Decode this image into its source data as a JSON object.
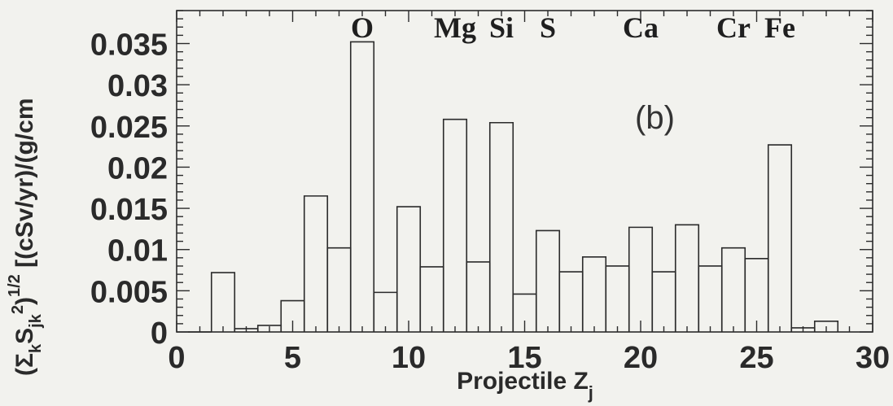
{
  "chart_data": {
    "type": "bar",
    "style": "step-histogram",
    "bin_width": 1,
    "x": [
      1,
      2,
      3,
      4,
      5,
      6,
      7,
      8,
      9,
      10,
      11,
      12,
      13,
      14,
      15,
      16,
      17,
      18,
      19,
      20,
      21,
      22,
      23,
      24,
      25,
      26,
      27,
      28
    ],
    "values": [
      0,
      0.0072,
      0.0004,
      0.0008,
      0.0038,
      0.0165,
      0.0102,
      0.0352,
      0.0048,
      0.0152,
      0.0079,
      0.0258,
      0.0085,
      0.0254,
      0.0046,
      0.0123,
      0.0073,
      0.0091,
      0.008,
      0.0127,
      0.0073,
      0.013,
      0.008,
      0.0102,
      0.0089,
      0.0227,
      0.0005,
      0.0013
    ],
    "xlim": [
      0,
      30
    ],
    "ylim": [
      0,
      0.039
    ],
    "xticks": [
      0,
      5,
      10,
      15,
      20,
      25,
      30
    ],
    "xtick_labels": [
      "0",
      "5",
      "10",
      "15",
      "20",
      "25",
      "30"
    ],
    "yticks": [
      0,
      0.005,
      0.01,
      0.015,
      0.02,
      0.025,
      0.03,
      0.035
    ],
    "ytick_labels": [
      "0",
      "0.005",
      "0.01",
      "0.015",
      "0.02",
      "0.025",
      "0.03",
      "0.035"
    ],
    "xlabel_main": "Projectile Z",
    "xlabel_sub": "j",
    "ylabel_parts": {
      "open": "(",
      "sigma": "Σ",
      "sigma_sub": "k",
      "s": "S",
      "s_sub": "jk",
      "sq": "2",
      "close": ")",
      "power": "1/2",
      "units": "[(cSv/yr)/(g/cm"
    },
    "element_labels": [
      {
        "text": "O",
        "z": 8
      },
      {
        "text": "Mg",
        "z": 12
      },
      {
        "text": "Si",
        "z": 14
      },
      {
        "text": "S",
        "z": 16
      },
      {
        "text": "Ca",
        "z": 20
      },
      {
        "text": "Cr",
        "z": 24
      },
      {
        "text": "Fe",
        "z": 26
      }
    ],
    "panel_label": "(b)",
    "grid": false,
    "legend": "none",
    "colors": {
      "line": "#2b2b2b",
      "text": "#2a2a2a",
      "background": "#f2f2ee"
    }
  }
}
